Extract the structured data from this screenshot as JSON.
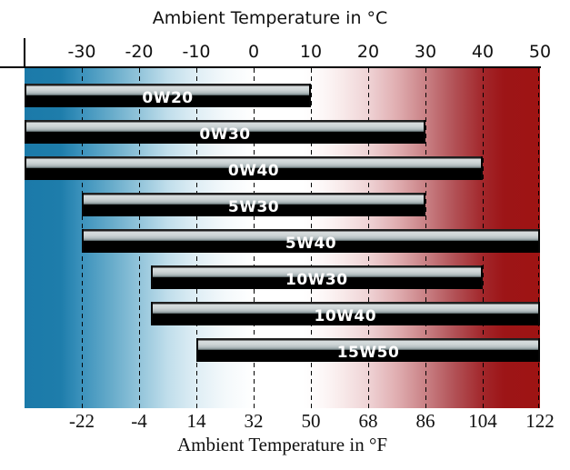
{
  "chart_data": {
    "type": "bar",
    "orientation": "horizontal-range",
    "title_top": "Ambient Temperature in °C",
    "title_bottom": "Ambient Temperature in °F",
    "celsius_ticks": [
      -30,
      -20,
      -10,
      0,
      10,
      20,
      30,
      40,
      50
    ],
    "fahrenheit_ticks": [
      -22,
      -4,
      14,
      32,
      50,
      68,
      86,
      104,
      122
    ],
    "axis_range_c": [
      -40,
      50
    ],
    "grid": "dashed-vertical",
    "series": [
      {
        "name": "0W20",
        "min_c": -40,
        "max_c": 10,
        "min_f": -40,
        "max_f": 50
      },
      {
        "name": "0W30",
        "min_c": -40,
        "max_c": 30,
        "min_f": -40,
        "max_f": 86
      },
      {
        "name": "0W40",
        "min_c": -40,
        "max_c": 40,
        "min_f": -40,
        "max_f": 104
      },
      {
        "name": "5W30",
        "min_c": -30,
        "max_c": 30,
        "min_f": -22,
        "max_f": 86
      },
      {
        "name": "5W40",
        "min_c": -30,
        "max_c": 50,
        "min_f": -22,
        "max_f": 122
      },
      {
        "name": "10W30",
        "min_c": -18,
        "max_c": 40,
        "min_f": 0,
        "max_f": 104
      },
      {
        "name": "10W40",
        "min_c": -18,
        "max_c": 50,
        "min_f": 0,
        "max_f": 122
      },
      {
        "name": "15W50",
        "min_c": -10,
        "max_c": 50,
        "min_f": 14,
        "max_f": 122
      }
    ],
    "colors": {
      "cold_end": "#1b7aa9",
      "neutral": "#ffffff",
      "hot_end": "#9e1413",
      "bar_highlight": "#d8dedf",
      "bar_shadow": "#000000",
      "bar_text": "#ffffff"
    }
  }
}
